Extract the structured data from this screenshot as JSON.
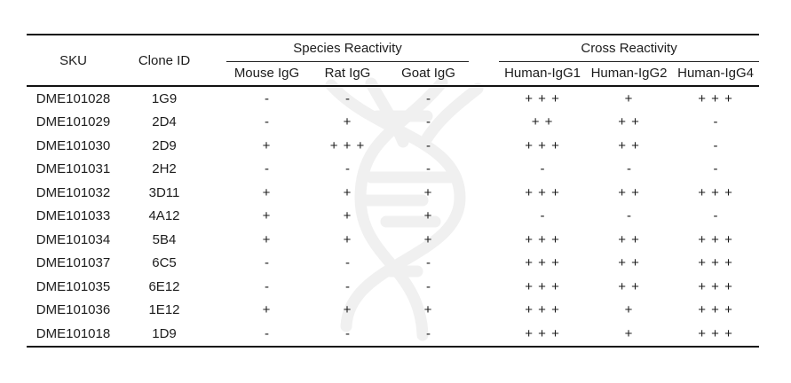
{
  "table": {
    "columns": {
      "sku_label": "SKU",
      "clone_label": "Clone ID",
      "species_group_label": "Species Reactivity",
      "cross_group_label": "Cross Reactivity",
      "species_columns": [
        "Mouse IgG",
        "Rat IgG",
        "Goat IgG"
      ],
      "cross_columns": [
        "Human-IgG1",
        "Human-IgG2",
        "Human-IgG4"
      ]
    },
    "rows": [
      {
        "sku": "DME101028",
        "clone_id": "1G9",
        "mouse_igg": "-",
        "rat_igg": "-",
        "goat_igg": "-",
        "human_igg1": "+ + +",
        "human_igg2": "+",
        "human_igg4": "+ + +"
      },
      {
        "sku": "DME101029",
        "clone_id": "2D4",
        "mouse_igg": "-",
        "rat_igg": "+",
        "goat_igg": "-",
        "human_igg1": "+ +",
        "human_igg2": "+ +",
        "human_igg4": "-"
      },
      {
        "sku": "DME101030",
        "clone_id": "2D9",
        "mouse_igg": "+",
        "rat_igg": "+ + +",
        "goat_igg": "-",
        "human_igg1": "+ + +",
        "human_igg2": "+ +",
        "human_igg4": "-"
      },
      {
        "sku": "DME101031",
        "clone_id": "2H2",
        "mouse_igg": "-",
        "rat_igg": "-",
        "goat_igg": "-",
        "human_igg1": "-",
        "human_igg2": "-",
        "human_igg4": "-"
      },
      {
        "sku": "DME101032",
        "clone_id": "3D11",
        "mouse_igg": "+",
        "rat_igg": "+",
        "goat_igg": "+",
        "human_igg1": "+ + +",
        "human_igg2": "+ +",
        "human_igg4": "+ + +"
      },
      {
        "sku": "DME101033",
        "clone_id": "4A12",
        "mouse_igg": "+",
        "rat_igg": "+",
        "goat_igg": "+",
        "human_igg1": "-",
        "human_igg2": "-",
        "human_igg4": "-"
      },
      {
        "sku": "DME101034",
        "clone_id": "5B4",
        "mouse_igg": "+",
        "rat_igg": "+",
        "goat_igg": "+",
        "human_igg1": "+ + +",
        "human_igg2": "+ +",
        "human_igg4": "+ + +"
      },
      {
        "sku": "DME101037",
        "clone_id": "6C5",
        "mouse_igg": "-",
        "rat_igg": "-",
        "goat_igg": "-",
        "human_igg1": "+ + +",
        "human_igg2": "+ +",
        "human_igg4": "+ + +"
      },
      {
        "sku": "DME101035",
        "clone_id": "6E12",
        "mouse_igg": "-",
        "rat_igg": "-",
        "goat_igg": "-",
        "human_igg1": "+ + +",
        "human_igg2": "+ +",
        "human_igg4": "+ + +"
      },
      {
        "sku": "DME101036",
        "clone_id": "1E12",
        "mouse_igg": "+",
        "rat_igg": "+",
        "goat_igg": "+",
        "human_igg1": "+ + +",
        "human_igg2": "+",
        "human_igg4": "+ + +"
      },
      {
        "sku": "DME101018",
        "clone_id": "1D9",
        "mouse_igg": "-",
        "rat_igg": "-",
        "goat_igg": "-",
        "human_igg1": "+ + +",
        "human_igg2": "+",
        "human_igg4": "+ + +"
      }
    ]
  },
  "watermark": {
    "icon": "dna-helix",
    "color": "#f0f0f0"
  }
}
